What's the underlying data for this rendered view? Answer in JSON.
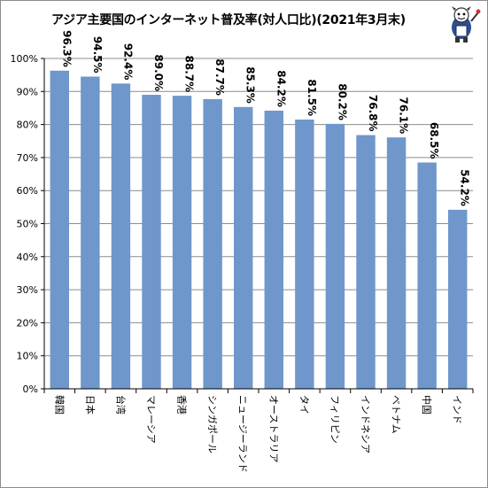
{
  "chart_data": {
    "type": "bar",
    "title": "アジア主要国のインターネット普及率(対人口比)(2021年3月末)",
    "categories": [
      "韓国",
      "日本",
      "台湾",
      "マレーシア",
      "香港",
      "シンガポール",
      "ニュージーランド",
      "オーストラリア",
      "タイ",
      "フィリピン",
      "インドネシア",
      "ベトナム",
      "中国",
      "インド"
    ],
    "values": [
      96.3,
      94.5,
      92.4,
      89.0,
      88.7,
      87.7,
      85.3,
      84.2,
      81.5,
      80.2,
      76.8,
      76.1,
      68.5,
      54.2
    ],
    "value_labels": [
      "96.3%",
      "94.5%",
      "92.4%",
      "89.0%",
      "88.7%",
      "87.7%",
      "85.3%",
      "84.2%",
      "81.5%",
      "80.2%",
      "76.8%",
      "76.1%",
      "68.5%",
      "54.2%"
    ],
    "yticks": [
      "0%",
      "10%",
      "20%",
      "30%",
      "40%",
      "50%",
      "60%",
      "70%",
      "80%",
      "90%",
      "100%"
    ],
    "ylim": [
      0,
      100
    ],
    "xlabel": "",
    "ylabel": "",
    "grid": true,
    "legend": "none",
    "bar_color": "#6f97cb",
    "grid_color": "#8c8c8c"
  }
}
